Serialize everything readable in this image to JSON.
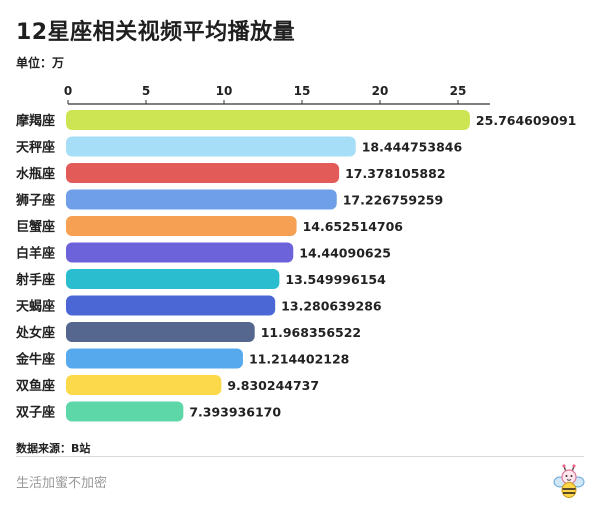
{
  "title": "12星座相关视频平均播放量",
  "unit_label": "单位：万",
  "source_label": "数据来源：B站",
  "brand_label": "生活加蜜不加密",
  "mascot_icon": "bee-mascot-icon",
  "chart_data": {
    "type": "bar",
    "orientation": "horizontal",
    "title": "12星座相关视频平均播放量",
    "xlim": [
      0,
      25
    ],
    "xticks": [
      0,
      5,
      10,
      15,
      20,
      25
    ],
    "grid": false,
    "categories": [
      "摩羯座",
      "天秤座",
      "水瓶座",
      "狮子座",
      "巨蟹座",
      "白羊座",
      "射手座",
      "天蝎座",
      "处女座",
      "金牛座",
      "双鱼座",
      "双子座"
    ],
    "values": [
      25.764609091,
      18.444753846,
      17.378105882,
      17.226759259,
      14.652514706,
      14.44090625,
      13.549996154,
      13.280639286,
      11.968356522,
      11.214402128,
      9.830244737,
      7.39393617
    ],
    "value_labels": [
      "25.764609091",
      "18.444753846",
      "17.378105882",
      "17.226759259",
      "14.652514706",
      "14.44090625",
      "13.549996154",
      "13.280639286",
      "11.968356522",
      "11.214402128",
      "9.830244737",
      "7.393936170"
    ],
    "colors": [
      "#cde552",
      "#a6ddf7",
      "#e25b58",
      "#6f9fe8",
      "#f5a052",
      "#6c62da",
      "#29bdcf",
      "#4b67d5",
      "#56678f",
      "#56a9ec",
      "#fcd84b",
      "#5dd6a8"
    ]
  }
}
